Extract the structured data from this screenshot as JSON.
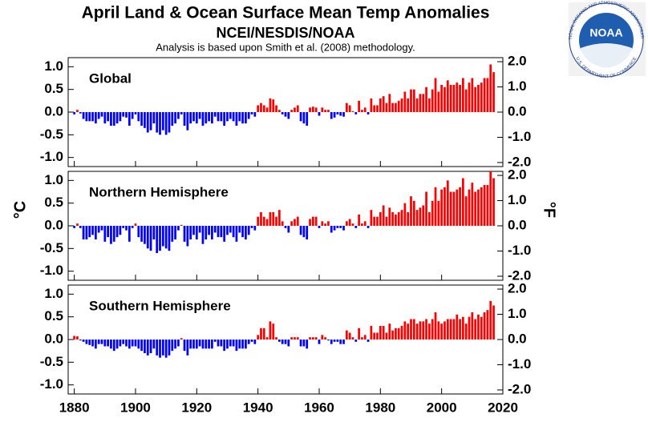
{
  "chart_data": {
    "type": "bar",
    "title": "April Land & Ocean Surface Mean Temp Anomalies",
    "subtitle": "NCEI/NESDIS/NOAA",
    "note": "Analysis is based upon Smith et al. (2008) methodology.",
    "ylabel": "°C",
    "y2label": "°F",
    "pos_color": "#ff0000",
    "neg_color": "#0000ff",
    "xlim": [
      1878,
      2020
    ],
    "xticks": [
      1880,
      1900,
      1920,
      1940,
      1960,
      1980,
      2000,
      2020
    ],
    "ylim": [
      -1.2,
      1.2
    ],
    "yticks": [
      {
        "value": -1,
        "label": "-1.0"
      },
      -0.5,
      {
        "value": 0,
        "label": "0.0"
      },
      0.5,
      {
        "value": 1,
        "label": "1.0"
      }
    ],
    "y2lim": [
      -2.16,
      2.16
    ],
    "y2ticks": [
      {
        "value": -2,
        "label": "-2.0"
      },
      {
        "value": -1,
        "label": "-1.0"
      },
      {
        "value": 0,
        "label": "0.0"
      },
      {
        "value": 1,
        "label": "1.0"
      },
      {
        "value": 2,
        "label": "2.0"
      }
    ],
    "x": [
      1880,
      1881,
      1882,
      1883,
      1884,
      1885,
      1886,
      1887,
      1888,
      1889,
      1890,
      1891,
      1892,
      1893,
      1894,
      1895,
      1896,
      1897,
      1898,
      1899,
      1900,
      1901,
      1902,
      1903,
      1904,
      1905,
      1906,
      1907,
      1908,
      1909,
      1910,
      1911,
      1912,
      1913,
      1914,
      1915,
      1916,
      1917,
      1918,
      1919,
      1920,
      1921,
      1922,
      1923,
      1924,
      1925,
      1926,
      1927,
      1928,
      1929,
      1930,
      1931,
      1932,
      1933,
      1934,
      1935,
      1936,
      1937,
      1938,
      1939,
      1940,
      1941,
      1942,
      1943,
      1944,
      1945,
      1946,
      1947,
      1948,
      1949,
      1950,
      1951,
      1952,
      1953,
      1954,
      1955,
      1956,
      1957,
      1958,
      1959,
      1960,
      1961,
      1962,
      1963,
      1964,
      1965,
      1966,
      1967,
      1968,
      1969,
      1970,
      1971,
      1972,
      1973,
      1974,
      1975,
      1976,
      1977,
      1978,
      1979,
      1980,
      1981,
      1982,
      1983,
      1984,
      1985,
      1986,
      1987,
      1988,
      1989,
      1990,
      1991,
      1992,
      1993,
      1994,
      1995,
      1996,
      1997,
      1998,
      1999,
      2000,
      2001,
      2002,
      2003,
      2004,
      2005,
      2006,
      2007,
      2008,
      2009,
      2010,
      2011,
      2012,
      2013,
      2014,
      2015,
      2016,
      2017
    ],
    "series": [
      {
        "name": "Global",
        "values": [
          -0.05,
          0.05,
          -0.03,
          -0.15,
          -0.2,
          -0.2,
          -0.2,
          -0.25,
          -0.15,
          -0.1,
          -0.25,
          -0.2,
          -0.3,
          -0.3,
          -0.25,
          -0.2,
          -0.1,
          -0.12,
          -0.3,
          -0.15,
          -0.05,
          -0.2,
          -0.3,
          -0.35,
          -0.45,
          -0.4,
          -0.25,
          -0.45,
          -0.5,
          -0.4,
          -0.5,
          -0.45,
          -0.3,
          -0.25,
          -0.15,
          -0.05,
          -0.3,
          -0.4,
          -0.25,
          -0.2,
          -0.25,
          -0.15,
          -0.3,
          -0.25,
          -0.2,
          -0.25,
          -0.1,
          -0.2,
          -0.2,
          -0.3,
          -0.2,
          -0.15,
          -0.2,
          -0.3,
          -0.2,
          -0.25,
          -0.25,
          -0.15,
          -0.05,
          -0.1,
          0.15,
          0.2,
          0.15,
          0.1,
          0.3,
          0.28,
          0.15,
          0.05,
          -0.05,
          -0.1,
          -0.15,
          0.05,
          0.1,
          0.15,
          -0.2,
          -0.25,
          -0.3,
          0.1,
          0.12,
          0.1,
          -0.08,
          0.1,
          0.05,
          0.05,
          -0.15,
          -0.12,
          -0.05,
          -0.08,
          -0.1,
          0.2,
          0.15,
          0.02,
          -0.05,
          0.25,
          0.05,
          0.1,
          -0.05,
          0.3,
          0.15,
          0.15,
          0.3,
          0.35,
          0.2,
          0.4,
          0.2,
          0.2,
          0.25,
          0.3,
          0.45,
          0.3,
          0.5,
          0.5,
          0.3,
          0.4,
          0.4,
          0.55,
          0.3,
          0.5,
          0.75,
          0.45,
          0.6,
          0.55,
          0.7,
          0.6,
          0.6,
          0.65,
          0.6,
          0.75,
          0.5,
          0.65,
          0.75,
          0.55,
          0.6,
          0.65,
          0.75,
          0.75,
          1.05,
          0.88
        ]
      },
      {
        "name": "Northern Hemisphere",
        "values": [
          -0.05,
          0.05,
          -0.05,
          -0.3,
          -0.3,
          -0.25,
          -0.2,
          -0.3,
          -0.15,
          -0.1,
          -0.35,
          -0.25,
          -0.4,
          -0.35,
          -0.25,
          -0.2,
          -0.05,
          -0.1,
          -0.35,
          -0.05,
          0.05,
          -0.25,
          -0.35,
          -0.4,
          -0.5,
          -0.55,
          -0.3,
          -0.6,
          -0.55,
          -0.45,
          -0.5,
          -0.55,
          -0.35,
          -0.3,
          -0.1,
          0.02,
          -0.35,
          -0.45,
          -0.3,
          -0.2,
          -0.3,
          -0.15,
          -0.4,
          -0.3,
          -0.2,
          -0.3,
          -0.15,
          -0.25,
          -0.25,
          -0.35,
          -0.2,
          -0.15,
          -0.25,
          -0.35,
          -0.15,
          -0.25,
          -0.3,
          -0.2,
          -0.05,
          -0.1,
          0.2,
          0.3,
          0.2,
          0.15,
          0.3,
          0.3,
          0.2,
          0.35,
          0.1,
          -0.05,
          -0.15,
          0.1,
          0.15,
          0.2,
          -0.2,
          -0.25,
          -0.3,
          0.15,
          0.2,
          0.2,
          -0.05,
          0.1,
          0.05,
          0.1,
          -0.15,
          -0.1,
          -0.05,
          -0.05,
          -0.1,
          0.1,
          0.15,
          0.05,
          -0.05,
          0.25,
          0.05,
          0.1,
          -0.05,
          0.35,
          0.2,
          0.2,
          0.3,
          0.45,
          0.2,
          0.4,
          0.3,
          0.25,
          0.3,
          0.35,
          0.5,
          0.3,
          0.65,
          0.55,
          0.35,
          0.4,
          0.45,
          0.75,
          0.3,
          0.55,
          0.85,
          0.55,
          0.8,
          0.85,
          1.0,
          0.75,
          0.75,
          0.8,
          0.85,
          1.05,
          0.65,
          0.8,
          0.95,
          0.75,
          0.8,
          0.85,
          0.9,
          0.9,
          1.2,
          1.05
        ]
      },
      {
        "name": "Southern Hemisphere",
        "values": [
          0.08,
          0.07,
          -0.02,
          -0.05,
          -0.1,
          -0.12,
          -0.15,
          -0.2,
          -0.1,
          -0.1,
          -0.15,
          -0.15,
          -0.2,
          -0.25,
          -0.2,
          -0.15,
          -0.1,
          -0.15,
          -0.2,
          -0.15,
          -0.15,
          -0.2,
          -0.25,
          -0.3,
          -0.35,
          -0.3,
          -0.2,
          -0.35,
          -0.4,
          -0.35,
          -0.4,
          -0.35,
          -0.25,
          -0.2,
          -0.15,
          0.03,
          -0.25,
          -0.35,
          -0.2,
          -0.2,
          -0.2,
          -0.15,
          -0.2,
          -0.2,
          -0.2,
          -0.2,
          -0.05,
          -0.15,
          -0.15,
          -0.25,
          -0.2,
          -0.15,
          -0.15,
          -0.25,
          -0.2,
          -0.2,
          -0.2,
          -0.1,
          -0.05,
          -0.1,
          0.1,
          0.25,
          0.25,
          0.05,
          0.4,
          0.35,
          0.05,
          -0.05,
          -0.1,
          -0.1,
          -0.15,
          0.05,
          0.05,
          0.05,
          -0.15,
          -0.15,
          -0.2,
          0.05,
          0.05,
          0.05,
          -0.1,
          0.1,
          0.05,
          -0.02,
          -0.1,
          -0.05,
          -0.05,
          -0.1,
          -0.1,
          0.2,
          0.15,
          0.05,
          -0.05,
          0.25,
          0.05,
          0.1,
          -0.05,
          0.3,
          0.15,
          0.15,
          0.3,
          0.3,
          0.15,
          0.35,
          0.2,
          0.25,
          0.25,
          0.3,
          0.4,
          0.35,
          0.45,
          0.45,
          0.35,
          0.4,
          0.4,
          0.45,
          0.35,
          0.45,
          0.6,
          0.4,
          0.35,
          0.4,
          0.45,
          0.45,
          0.45,
          0.55,
          0.45,
          0.5,
          0.35,
          0.5,
          0.6,
          0.45,
          0.55,
          0.5,
          0.6,
          0.65,
          0.85,
          0.75
        ]
      }
    ]
  },
  "logo": {
    "text": "NOAA",
    "ring_top": "NATIONAL OCEANIC AND ATMOSPHERIC ADMINISTRATION",
    "ring_bottom": "U.S. DEPARTMENT OF COMMERCE"
  }
}
